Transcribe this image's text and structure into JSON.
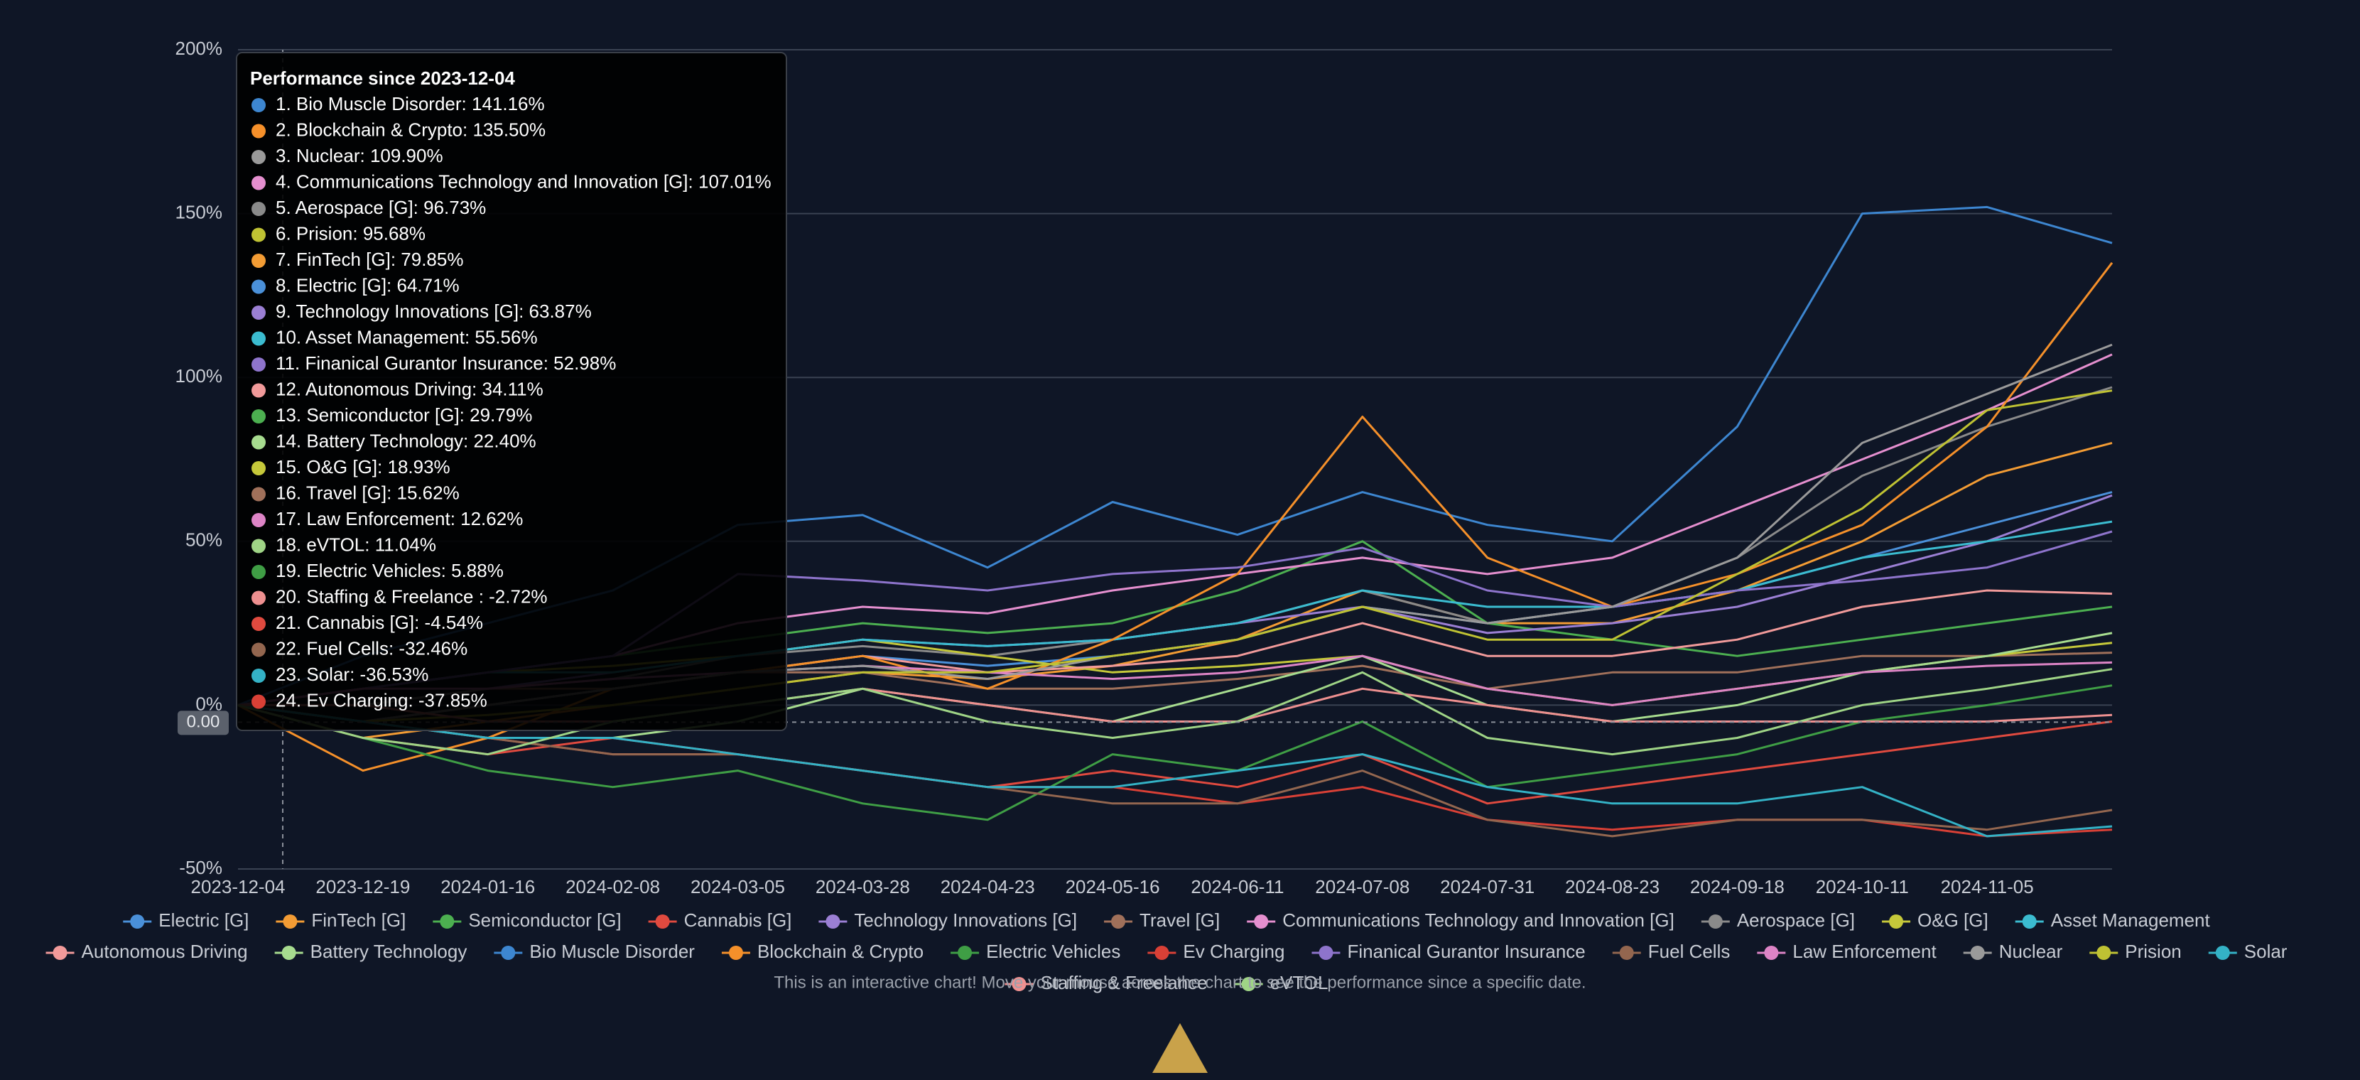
{
  "chart_data": {
    "type": "line",
    "x": [
      "2023-12-04",
      "2023-12-19",
      "2024-01-16",
      "2024-02-08",
      "2024-03-05",
      "2024-03-28",
      "2024-04-23",
      "2024-05-16",
      "2024-06-11",
      "2024-07-08",
      "2024-07-31",
      "2024-08-23",
      "2024-09-18",
      "2024-10-11",
      "2024-11-05",
      null
    ],
    "ylim": [
      -50,
      200
    ],
    "yticks": [
      {
        "value": -50,
        "label": "-50%"
      },
      {
        "value": 0,
        "label": "0%"
      },
      {
        "value": 50,
        "label": "50%"
      },
      {
        "value": 100,
        "label": "100%"
      },
      {
        "value": 150,
        "label": "150%"
      },
      {
        "value": 200,
        "label": "200%"
      }
    ],
    "grid": true,
    "series": [
      {
        "name": "Electric [G]",
        "color": "#4a90d9",
        "values": [
          0,
          -5,
          0,
          5,
          10,
          15,
          12,
          15,
          20,
          30,
          25,
          30,
          35,
          45,
          55,
          65
        ]
      },
      {
        "name": "FinTech [G]",
        "color": "#f39c34",
        "values": [
          0,
          -10,
          -5,
          0,
          5,
          10,
          8,
          12,
          20,
          35,
          25,
          25,
          35,
          50,
          70,
          80
        ]
      },
      {
        "name": "Semiconductor [G]",
        "color": "#4caf50",
        "values": [
          0,
          5,
          10,
          15,
          20,
          25,
          22,
          25,
          35,
          50,
          25,
          20,
          15,
          20,
          25,
          30
        ]
      },
      {
        "name": "Cannabis [G]",
        "color": "#e04a3f",
        "values": [
          0,
          -10,
          -15,
          -10,
          -15,
          -20,
          -25,
          -20,
          -25,
          -15,
          -30,
          -25,
          -20,
          -15,
          -10,
          -5
        ]
      },
      {
        "name": "Technology Innovations [G]",
        "color": "#9b7fd4",
        "values": [
          0,
          0,
          5,
          10,
          15,
          20,
          18,
          20,
          25,
          30,
          22,
          25,
          30,
          40,
          50,
          64
        ]
      },
      {
        "name": "Travel [G]",
        "color": "#a0705a",
        "values": [
          0,
          0,
          5,
          5,
          10,
          10,
          5,
          5,
          8,
          12,
          5,
          10,
          10,
          15,
          15,
          16
        ]
      },
      {
        "name": "Communications Technology and Innovation [G]",
        "color": "#e58fcf",
        "values": [
          0,
          5,
          10,
          15,
          25,
          30,
          28,
          35,
          40,
          45,
          40,
          45,
          60,
          75,
          90,
          107
        ]
      },
      {
        "name": "Aerospace [G]",
        "color": "#8a8a8a",
        "values": [
          0,
          0,
          5,
          8,
          15,
          18,
          15,
          20,
          25,
          35,
          25,
          30,
          45,
          70,
          85,
          97
        ]
      },
      {
        "name": "O&G [G]",
        "color": "#c5c83a",
        "values": [
          0,
          5,
          10,
          12,
          15,
          20,
          15,
          10,
          12,
          15,
          5,
          0,
          5,
          10,
          15,
          19
        ]
      },
      {
        "name": "Asset Management",
        "color": "#3bbcd0",
        "values": [
          0,
          5,
          10,
          10,
          15,
          20,
          18,
          20,
          25,
          35,
          30,
          30,
          35,
          45,
          50,
          56
        ]
      },
      {
        "name": "Autonomous Driving",
        "color": "#f19a9a",
        "values": [
          0,
          -5,
          0,
          5,
          10,
          15,
          10,
          12,
          15,
          25,
          15,
          15,
          20,
          30,
          35,
          34
        ]
      },
      {
        "name": "Battery Technology",
        "color": "#a7dc8f",
        "values": [
          0,
          -5,
          -10,
          -10,
          -5,
          5,
          0,
          -5,
          5,
          15,
          0,
          -5,
          0,
          10,
          15,
          22
        ]
      },
      {
        "name": "Bio Muscle Disorder",
        "color": "#3d86d0",
        "values": [
          0,
          15,
          25,
          35,
          55,
          58,
          42,
          62,
          52,
          65,
          55,
          50,
          85,
          150,
          152,
          141
        ]
      },
      {
        "name": "Blockchain & Crypto",
        "color": "#f5902a",
        "values": [
          0,
          -20,
          -10,
          5,
          10,
          15,
          5,
          20,
          40,
          88,
          45,
          30,
          40,
          55,
          85,
          135
        ]
      },
      {
        "name": "Electric Vehicles",
        "color": "#3f9e45",
        "values": [
          0,
          -10,
          -20,
          -25,
          -20,
          -30,
          -35,
          -15,
          -20,
          -5,
          -25,
          -20,
          -15,
          -5,
          0,
          6
        ]
      },
      {
        "name": "Ev Charging",
        "color": "#d94036",
        "values": [
          0,
          -5,
          -10,
          -15,
          -15,
          -20,
          -25,
          -25,
          -30,
          -25,
          -35,
          -38,
          -35,
          -35,
          -40,
          -38
        ]
      },
      {
        "name": "Finanical Gurantor Insurance",
        "color": "#8e74cc",
        "values": [
          0,
          5,
          10,
          15,
          40,
          38,
          35,
          40,
          42,
          48,
          35,
          30,
          35,
          38,
          42,
          53
        ]
      },
      {
        "name": "Fuel Cells",
        "color": "#93664f",
        "values": [
          0,
          -5,
          -10,
          -15,
          -15,
          -20,
          -25,
          -30,
          -30,
          -20,
          -35,
          -40,
          -35,
          -35,
          -38,
          -32
        ]
      },
      {
        "name": "Law Enforcement",
        "color": "#dd84c6",
        "values": [
          0,
          5,
          5,
          8,
          10,
          12,
          10,
          8,
          10,
          15,
          5,
          0,
          5,
          10,
          12,
          13
        ]
      },
      {
        "name": "Nuclear",
        "color": "#9a9a9a",
        "values": [
          0,
          -5,
          0,
          5,
          10,
          12,
          8,
          15,
          20,
          30,
          25,
          30,
          45,
          80,
          95,
          110
        ]
      },
      {
        "name": "Prision",
        "color": "#bfc233",
        "values": [
          0,
          -5,
          -3,
          0,
          5,
          10,
          10,
          15,
          20,
          30,
          20,
          20,
          40,
          60,
          90,
          96
        ]
      },
      {
        "name": "Solar",
        "color": "#34b2c6",
        "values": [
          0,
          -5,
          -10,
          -10,
          -15,
          -20,
          -25,
          -25,
          -20,
          -15,
          -25,
          -30,
          -30,
          -25,
          -40,
          -37
        ]
      },
      {
        "name": "Staffing & Freelance",
        "color": "#ee9090",
        "values": [
          0,
          0,
          -5,
          -5,
          0,
          5,
          0,
          -5,
          -5,
          5,
          0,
          -5,
          -5,
          -5,
          -5,
          -3
        ]
      },
      {
        "name": "eVTOL",
        "color": "#9fd486",
        "values": [
          0,
          -10,
          -15,
          -5,
          0,
          5,
          -5,
          -10,
          -5,
          10,
          -10,
          -15,
          -10,
          0,
          5,
          11
        ]
      }
    ],
    "crosshair_label": "0.00",
    "tooltip": {
      "title": "Performance since 2023-12-04",
      "items": [
        {
          "text": "1. Bio Muscle Disorder: 141.16%",
          "color": "#3d86d0"
        },
        {
          "text": "2. Blockchain & Crypto: 135.50%",
          "color": "#f5902a"
        },
        {
          "text": "3. Nuclear: 109.90%",
          "color": "#9a9a9a"
        },
        {
          "text": "4. Communications Technology and Innovation [G]: 107.01%",
          "color": "#e58fcf"
        },
        {
          "text": "5. Aerospace [G]: 96.73%",
          "color": "#8a8a8a"
        },
        {
          "text": "6. Prision: 95.68%",
          "color": "#bfc233"
        },
        {
          "text": "7. FinTech [G]: 79.85%",
          "color": "#f39c34"
        },
        {
          "text": "8. Electric [G]: 64.71%",
          "color": "#4a90d9"
        },
        {
          "text": "9. Technology Innovations [G]: 63.87%",
          "color": "#9b7fd4"
        },
        {
          "text": "10. Asset Management: 55.56%",
          "color": "#3bbcd0"
        },
        {
          "text": "11. Finanical Gurantor Insurance: 52.98%",
          "color": "#8e74cc"
        },
        {
          "text": "12. Autonomous Driving: 34.11%",
          "color": "#f19a9a"
        },
        {
          "text": "13. Semiconductor [G]: 29.79%",
          "color": "#4caf50"
        },
        {
          "text": "14. Battery Technology: 22.40%",
          "color": "#a7dc8f"
        },
        {
          "text": "15. O&G [G]: 18.93%",
          "color": "#c5c83a"
        },
        {
          "text": "16. Travel [G]: 15.62%",
          "color": "#a0705a"
        },
        {
          "text": "17. Law Enforcement: 12.62%",
          "color": "#dd84c6"
        },
        {
          "text": "18. eVTOL: 11.04%",
          "color": "#9fd486"
        },
        {
          "text": "19. Electric Vehicles: 5.88%",
          "color": "#3f9e45"
        },
        {
          "text": "20. Staffing & Freelance : -2.72%",
          "color": "#ee9090"
        },
        {
          "text": "21. Cannabis [G]: -4.54%",
          "color": "#e04a3f"
        },
        {
          "text": "22. Fuel Cells: -32.46%",
          "color": "#93664f"
        },
        {
          "text": "23. Solar: -36.53%",
          "color": "#34b2c6"
        },
        {
          "text": "24. Ev Charging: -37.85%",
          "color": "#d94036"
        }
      ]
    },
    "footer": "This is an interactive chart! Move your mouse across the chart to see the performance since a specific date."
  }
}
